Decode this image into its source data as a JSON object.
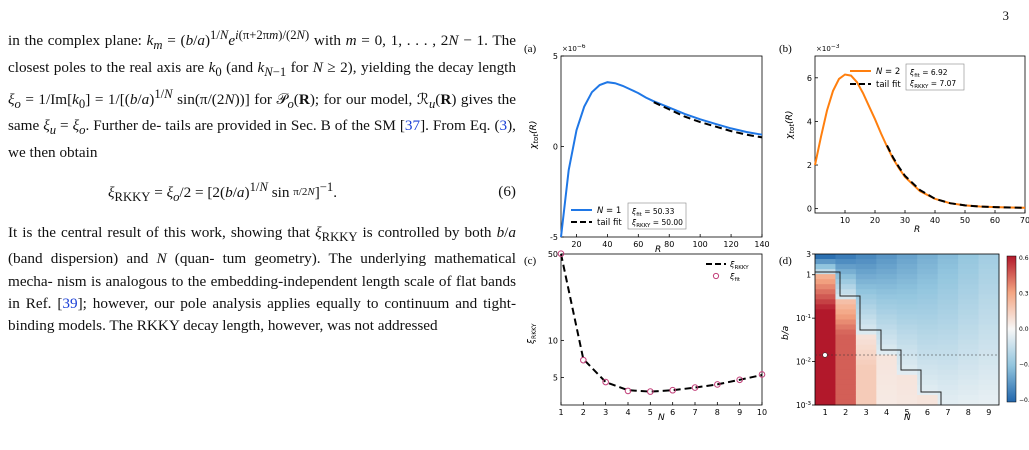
{
  "page_number": "3",
  "text": {
    "para1": "in the complex plane: k_m = (b/a)^{1/N} e^{i(π+2πm)/(2N)} with m = 0,1,...,2N−1. The closest poles to the real axis are k_0 (and k_{N−1} for N ≥ 2), yielding the decay length ξ_o = 1/Im[k_0] = 1/[(b/a)^{1/N} sin(π/(2N))] for P_o(R); for our model, R_u(R) gives the same ξ_u = ξ_o. Further details are provided in Sec. B of the SM [37]. From Eq. (3), we then obtain",
    "equation": "ξ_RKKY = ξ_o/2 = [2(b/a)^{1/N} sin π/2N]^{−1}.",
    "equation_number": "(6)",
    "para2": "It is the central result of this work, showing that ξ_RKKY is controlled by both b/a (band dispersion) and N (quantum geometry). The underlying mathematical mechanism is analogous to the embedding-independent length scale of flat bands in Ref. [39]; however, our pole analysis applies equally to continuum and tight-binding models. The RKKY decay length, however, was not addressed",
    "cite_sm": "37",
    "cite_eq": "3",
    "cite_ref": "39"
  },
  "colors": {
    "blue": "#1f77e6",
    "orange": "#ff7f0e",
    "fit": "#000000",
    "marker": "#c2407a"
  },
  "chart_data": [
    {
      "panel": "(a)",
      "type": "line",
      "xlabel": "R",
      "ylabel": "χ_tot(R)",
      "y_multiplier": "×10^−6",
      "xlim": [
        10,
        140
      ],
      "ylim": [
        -5,
        5
      ],
      "xticks": [
        20,
        40,
        60,
        80,
        100,
        120,
        140
      ],
      "yticks": [
        -5,
        0,
        5
      ],
      "series": [
        {
          "name": "N = 1",
          "style": "solid",
          "x": [
            10,
            15,
            20,
            25,
            30,
            35,
            40,
            45,
            50,
            55,
            60,
            65,
            70,
            80,
            90,
            100,
            110,
            120,
            130,
            140
          ],
          "y": [
            -5.0,
            -1.3,
            0.9,
            2.2,
            3.0,
            3.4,
            3.55,
            3.5,
            3.35,
            3.15,
            2.95,
            2.7,
            2.5,
            2.15,
            1.8,
            1.5,
            1.25,
            1.0,
            0.8,
            0.65
          ]
        },
        {
          "name": "tail fit",
          "style": "dashed",
          "x": [
            70,
            80,
            90,
            100,
            110,
            120,
            130,
            140
          ],
          "y": [
            2.45,
            2.05,
            1.65,
            1.35,
            1.1,
            0.85,
            0.65,
            0.5
          ]
        }
      ],
      "fit_box": [
        "ξ_fit = 50.33",
        "ξ_RKKY = 50.00"
      ]
    },
    {
      "panel": "(b)",
      "type": "line",
      "xlabel": "R",
      "ylabel": "χ_tot(R)",
      "y_multiplier": "×10^−3",
      "xlim": [
        0,
        70
      ],
      "ylim": [
        -0.2,
        7
      ],
      "xticks": [
        10,
        20,
        30,
        40,
        50,
        60,
        70
      ],
      "yticks": [
        0,
        2,
        4,
        6
      ],
      "series": [
        {
          "name": "N = 2",
          "style": "solid",
          "x": [
            0,
            2,
            4,
            6,
            8,
            10,
            12,
            14,
            16,
            18,
            20,
            22,
            24,
            26,
            28,
            30,
            35,
            40,
            45,
            50,
            55,
            60,
            65,
            70
          ],
          "y": [
            2.0,
            3.3,
            4.5,
            5.4,
            5.95,
            6.15,
            6.1,
            5.8,
            5.3,
            4.7,
            4.1,
            3.45,
            2.85,
            2.3,
            1.85,
            1.45,
            0.8,
            0.45,
            0.25,
            0.15,
            0.1,
            0.07,
            0.05,
            0.04
          ]
        },
        {
          "name": "tail fit",
          "style": "dashed",
          "x": [
            24,
            26,
            28,
            30,
            35,
            40,
            45,
            50,
            55,
            60,
            65,
            70
          ],
          "y": [
            2.9,
            2.35,
            1.9,
            1.5,
            0.85,
            0.45,
            0.25,
            0.15,
            0.1,
            0.07,
            0.05,
            0.04
          ]
        }
      ],
      "fit_box": [
        "ξ_fit = 6.92",
        "ξ_RKKY = 7.07"
      ]
    },
    {
      "panel": "(c)",
      "type": "line",
      "xlabel": "N",
      "ylabel": "ξ_RKKY",
      "xlim": [
        1,
        10
      ],
      "ylim": [
        3,
        50
      ],
      "log_y": true,
      "xticks": [
        1,
        2,
        3,
        4,
        5,
        6,
        7,
        8,
        9,
        10
      ],
      "yticks": [
        5,
        10,
        50
      ],
      "series": [
        {
          "name": "ξ_RKKY",
          "style": "dashed",
          "x": [
            1,
            2,
            3,
            4,
            5,
            6,
            7,
            8,
            9,
            10
          ],
          "y": [
            50,
            7.07,
            4.6,
            3.95,
            3.85,
            3.95,
            4.15,
            4.4,
            4.8,
            5.25
          ]
        },
        {
          "name": "ξ_fit",
          "style": "markers",
          "x": [
            1,
            2,
            3,
            4,
            5,
            6,
            7,
            8,
            9,
            10
          ],
          "y": [
            50.33,
            6.92,
            4.6,
            3.9,
            3.85,
            3.95,
            4.15,
            4.4,
            4.8,
            5.3
          ]
        }
      ]
    },
    {
      "panel": "(d)",
      "type": "heatmap",
      "xlabel": "N",
      "ylabel": "b/a",
      "log_y": true,
      "x": [
        1,
        2,
        3,
        4,
        5,
        6,
        7,
        8,
        9
      ],
      "ylim": [
        0.001,
        3
      ],
      "yticks": [
        "10^-3",
        "10^-2",
        "10^-1",
        "1",
        "3"
      ],
      "colorbar": {
        "min": -0.6,
        "max": 0.6,
        "ticks": [
          "0.6",
          "0.3",
          "0.0",
          "−0.3",
          "−0.6"
        ]
      },
      "dashed_line_y": 0.01
    }
  ]
}
